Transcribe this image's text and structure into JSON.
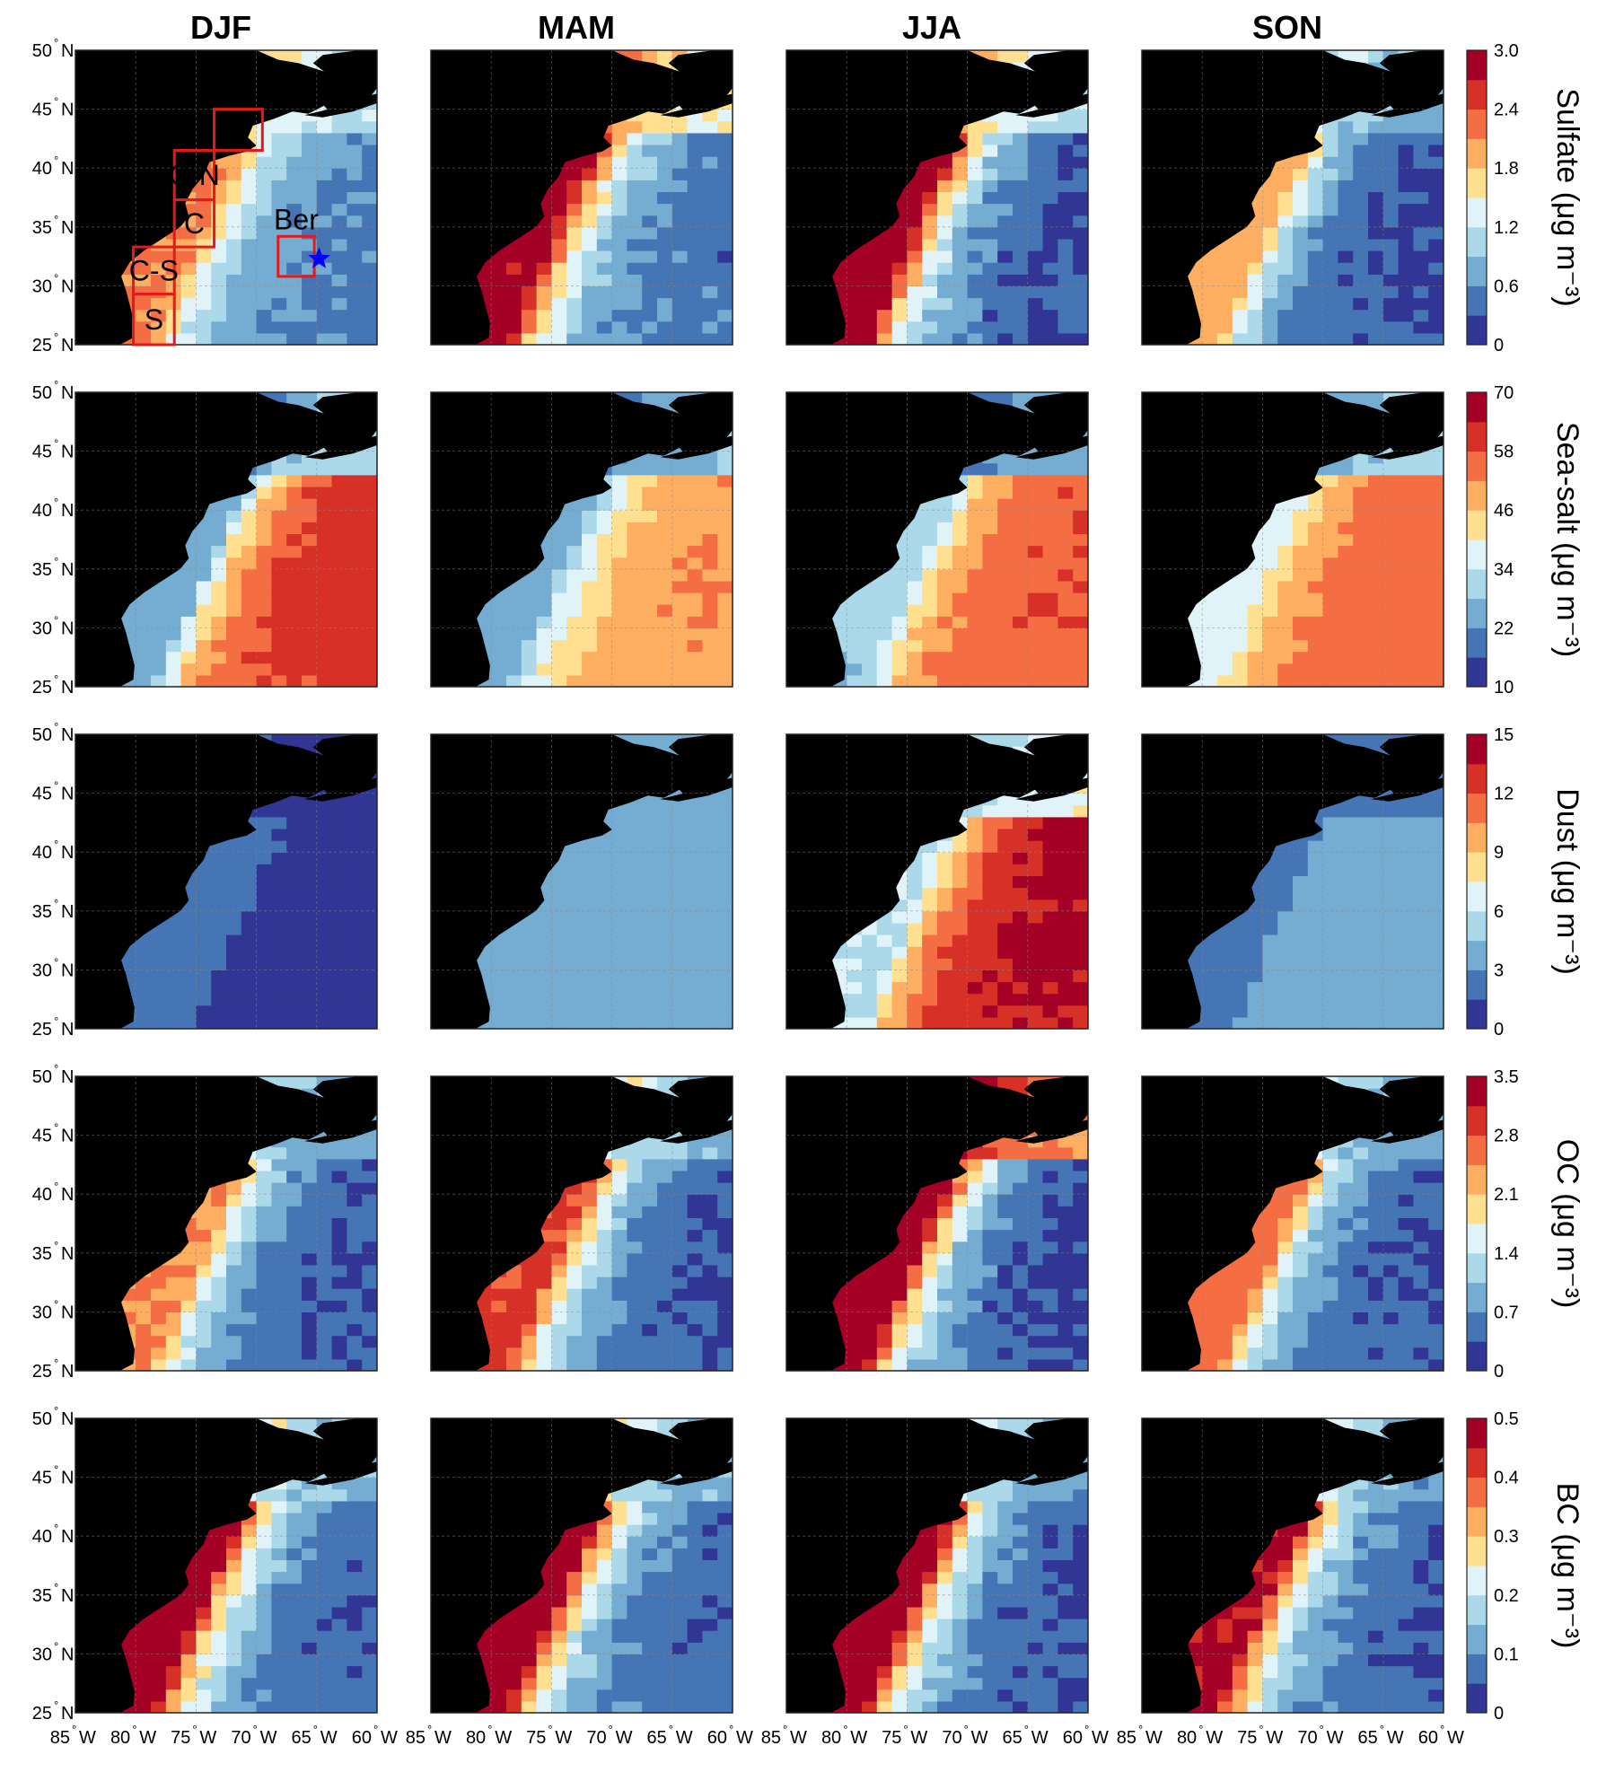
{
  "figure": {
    "seasons": [
      "DJF",
      "MAM",
      "JJA",
      "SON"
    ],
    "lat_ticks": [
      "25",
      "30",
      "35",
      "40",
      "45",
      "50"
    ],
    "lat_hemi": "N",
    "lon_ticks": [
      "85",
      "80",
      "75",
      "70",
      "65",
      "60"
    ],
    "lon_hemi": "W",
    "colors": [
      "#313695",
      "#4575b4",
      "#74add1",
      "#abd9e9",
      "#e0f3f8",
      "#fee090",
      "#fdae61",
      "#f46d43",
      "#d73027",
      "#a50026"
    ],
    "land_color": "#000000",
    "region_box_color": "#e31a1c",
    "bermuda_star_color": "#0000ff",
    "regions": [
      "N",
      "C-N",
      "C",
      "C-S",
      "S",
      "Ber"
    ]
  },
  "chart_data": [
    {
      "type": "heatmap",
      "name": "Sulfate",
      "unit_label": "Sulfate (μg m⁻³)",
      "colorbar_ticks": [
        "0",
        "0.6",
        "1.2",
        "1.8",
        "2.4",
        "3.0"
      ],
      "range": [
        0,
        3.0
      ],
      "xlim": [
        -85,
        -60
      ],
      "ylim": [
        25,
        50
      ],
      "seasonal_fields": {
        "DJF": {
          "coast": 2.1,
          "offshore": 0.5,
          "north": 1.4
        },
        "MAM": {
          "coast": 2.8,
          "offshore": 0.4,
          "north": 1.9
        },
        "JJA": {
          "coast": 3.0,
          "offshore": 0.2,
          "north": 1.5
        },
        "SON": {
          "coast": 1.9,
          "offshore": 0.2,
          "north": 1.0
        }
      }
    },
    {
      "type": "heatmap",
      "name": "Sea-salt",
      "unit_label": "Sea-salt (μg m⁻³)",
      "colorbar_ticks": [
        "10",
        "22",
        "34",
        "46",
        "58",
        "70"
      ],
      "range": [
        10,
        70
      ],
      "xlim": [
        -85,
        -60
      ],
      "ylim": [
        25,
        50
      ],
      "seasonal_fields": {
        "DJF": {
          "coast": 25,
          "offshore": 62,
          "north": 20
        },
        "MAM": {
          "coast": 25,
          "offshore": 52,
          "north": 18
        },
        "JJA": {
          "coast": 30,
          "offshore": 58,
          "north": 14
        },
        "SON": {
          "coast": 38,
          "offshore": 56,
          "north": 18
        }
      }
    },
    {
      "type": "heatmap",
      "name": "Dust",
      "unit_label": "Dust (μg m⁻³)",
      "colorbar_ticks": [
        "0",
        "3",
        "6",
        "9",
        "12",
        "15"
      ],
      "range": [
        0,
        15
      ],
      "xlim": [
        -85,
        -60
      ],
      "ylim": [
        25,
        50
      ],
      "seasonal_fields": {
        "DJF": {
          "coast": 2.5,
          "offshore": 1.0,
          "north": 1.0
        },
        "MAM": {
          "coast": 4.0,
          "offshore": 3.5,
          "north": 3.0
        },
        "JJA": {
          "coast": 6.0,
          "offshore": 14.0,
          "north": 4.5
        },
        "SON": {
          "coast": 2.5,
          "offshore": 4.0,
          "north": 1.5
        }
      }
    },
    {
      "type": "heatmap",
      "name": "OC",
      "unit_label": "OC (μg m⁻³)",
      "colorbar_ticks": [
        "0",
        "0.7",
        "1.4",
        "2.1",
        "2.8",
        "3.5"
      ],
      "range": [
        0,
        3.5
      ],
      "xlim": [
        -85,
        -60
      ],
      "ylim": [
        25,
        50
      ],
      "seasonal_fields": {
        "DJF": {
          "coast": 2.4,
          "offshore": 0.3,
          "north": 1.0
        },
        "MAM": {
          "coast": 2.9,
          "offshore": 0.3,
          "north": 1.2
        },
        "JJA": {
          "coast": 3.4,
          "offshore": 0.2,
          "north": 3.3
        },
        "SON": {
          "coast": 2.6,
          "offshore": 0.3,
          "north": 1.0
        }
      }
    },
    {
      "type": "heatmap",
      "name": "BC",
      "unit_label": "BC (μg m⁻³)",
      "colorbar_ticks": [
        "0",
        "0.1",
        "0.2",
        "0.3",
        "0.4",
        "0.5"
      ],
      "range": [
        0,
        0.5
      ],
      "xlim": [
        -85,
        -60
      ],
      "ylim": [
        25,
        50
      ],
      "seasonal_fields": {
        "DJF": {
          "coast": 0.48,
          "offshore": 0.05,
          "north": 0.16
        },
        "MAM": {
          "coast": 0.48,
          "offshore": 0.05,
          "north": 0.16
        },
        "JJA": {
          "coast": 0.48,
          "offshore": 0.04,
          "north": 0.14
        },
        "SON": {
          "coast": 0.45,
          "offshore": 0.05,
          "north": 0.14
        }
      }
    }
  ]
}
